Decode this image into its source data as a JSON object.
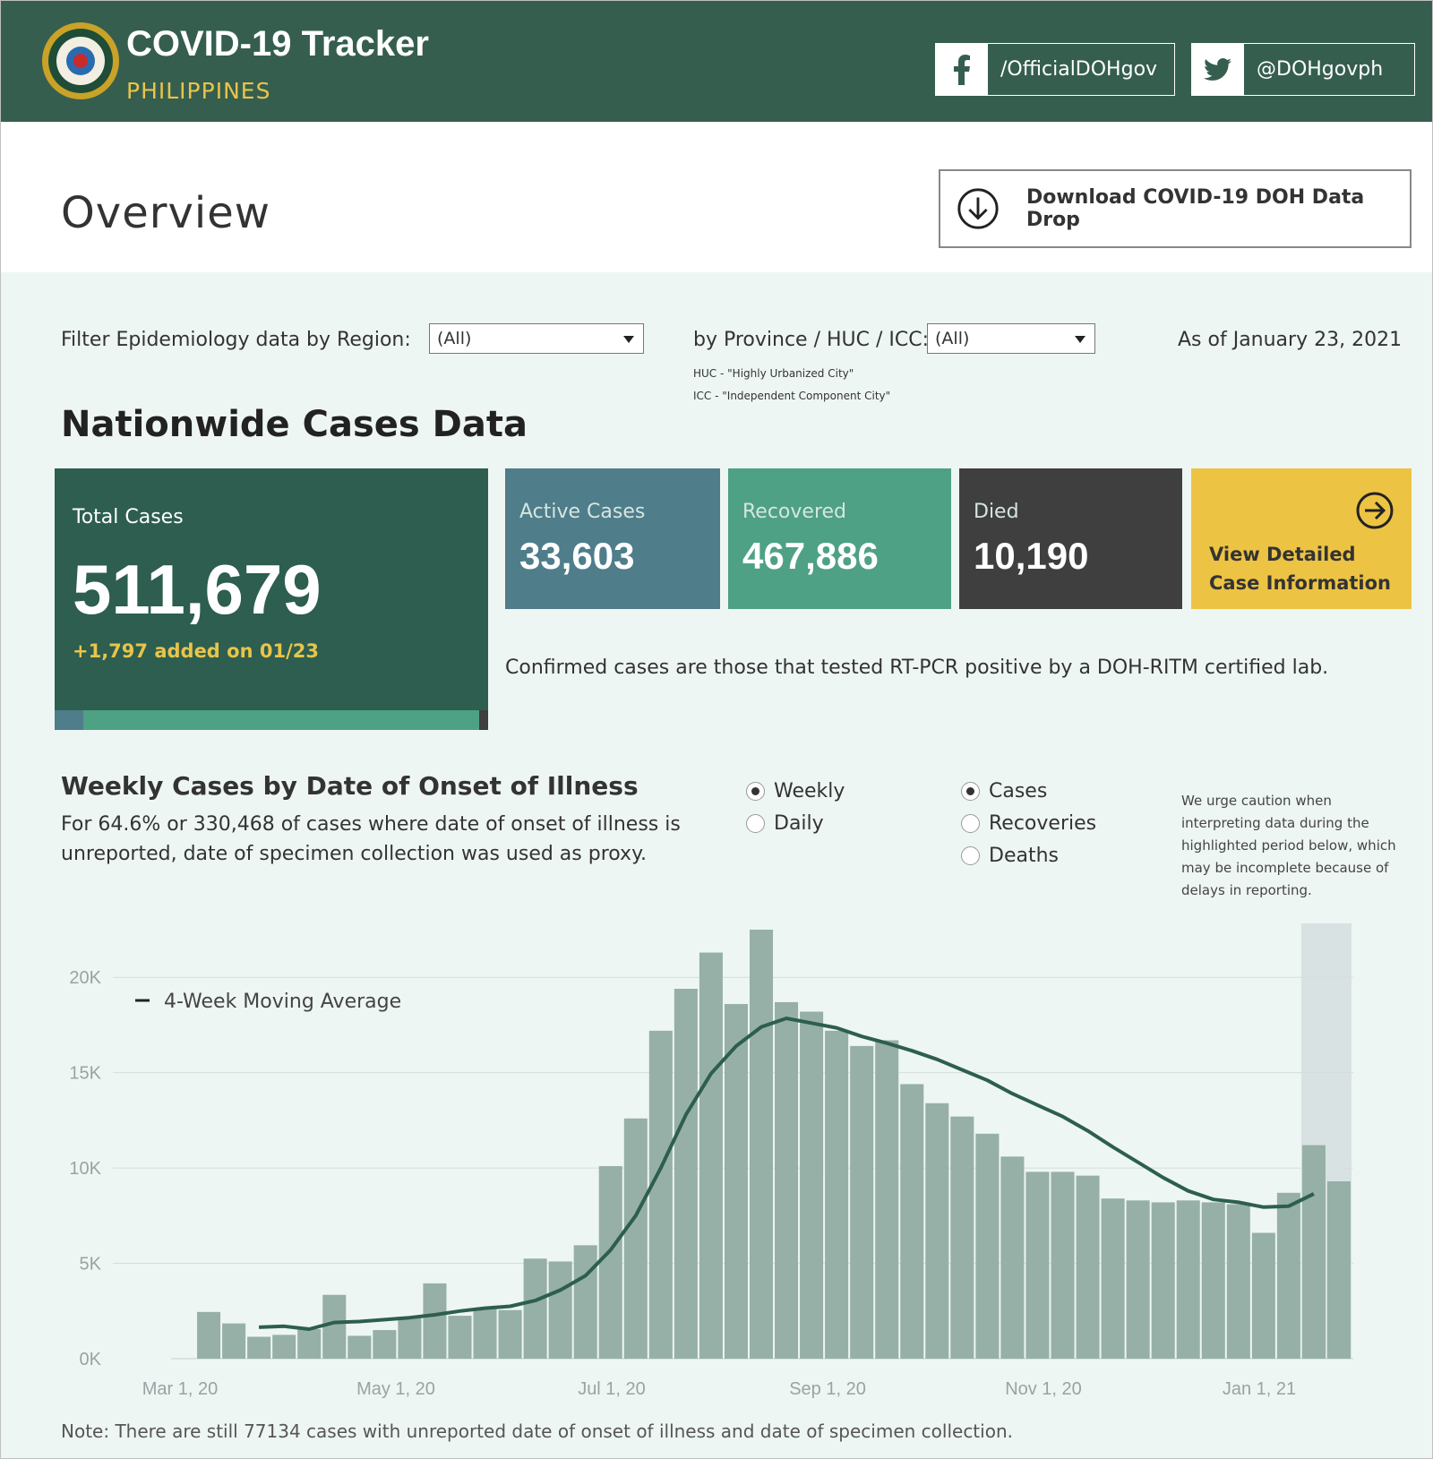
{
  "header": {
    "title": "COVID-19 Tracker",
    "subtitle": "PHILIPPINES",
    "facebook": "/OfficialDOHgov",
    "twitter": "@DOHgovph"
  },
  "overview": {
    "title": "Overview",
    "download_label": "Download COVID-19 DOH Data Drop"
  },
  "filters": {
    "region_label": "Filter Epidemiology data by Region:",
    "region_value": "(All)",
    "province_label": "by Province / HUC / ICC:",
    "province_value": "(All)",
    "huc_note": "HUC - \"Highly Urbanized City\"",
    "icc_note": "ICC - \"Independent Component City\"",
    "as_of": "As of January 23, 2021"
  },
  "cases": {
    "section_title": "Nationwide Cases Data",
    "total_label": "Total Cases",
    "total_value": "511,679",
    "added": "+1,797 added on 01/23",
    "active_label": "Active Cases",
    "active_value": "33,603",
    "recovered_label": "Recovered",
    "recovered_value": "467,886",
    "died_label": "Died",
    "died_value": "10,190",
    "cta_line1": "View Detailed",
    "cta_line2": "Case Information",
    "description": "Confirmed cases are those that tested RT-PCR positive by a DOH-RITM certified lab.",
    "colors": {
      "total": "#2d5e4f",
      "active": "#4f7d8a",
      "recovered": "#4ea184",
      "died": "#3f3f3f",
      "cta": "#edc343"
    }
  },
  "weekly": {
    "title": "Weekly Cases by Date of Onset of Illness",
    "subtitle": "For 64.6% or 330,468 of cases where date of onset of illness is unreported, date of specimen collection was used as proxy.",
    "period_options": [
      {
        "label": "Weekly",
        "selected": true
      },
      {
        "label": "Daily",
        "selected": false
      }
    ],
    "metric_options": [
      {
        "label": "Cases",
        "selected": true
      },
      {
        "label": "Recoveries",
        "selected": false
      },
      {
        "label": "Deaths",
        "selected": false
      }
    ],
    "caution": "We urge caution when interpreting data during the highlighted period below, which may be incomplete because of delays in reporting.",
    "footnote": "Note: There are still 77134 cases with unreported date of onset of illness and date of specimen collection."
  },
  "chart_data": {
    "type": "bar",
    "title": "Weekly Cases by Date of Onset of Illness",
    "legend": "4-Week Moving Average",
    "x_tick_labels": [
      "Mar 1, 20",
      "May 1, 20",
      "Jul 1, 20",
      "Sep 1, 20",
      "Nov 1, 20",
      "Jan 1, 21"
    ],
    "y_ticks": [
      0,
      5000,
      10000,
      15000,
      20000
    ],
    "y_tick_labels": [
      "0K",
      "5K",
      "10K",
      "15K",
      "20K"
    ],
    "ylim": [
      0,
      22500
    ],
    "values": [
      0,
      2450,
      1850,
      1150,
      1250,
      1550,
      3350,
      1200,
      1500,
      2200,
      3950,
      2250,
      2650,
      2550,
      5250,
      5100,
      5950,
      10100,
      12600,
      17200,
      19400,
      21300,
      18600,
      22500,
      18700,
      18200,
      17200,
      16400,
      16700,
      14400,
      13400,
      12700,
      11800,
      10600,
      9800,
      9800,
      9600,
      8400,
      8300,
      8200,
      8300,
      8200,
      8100,
      6600,
      8700,
      11200,
      9300
    ],
    "moving_average": [
      null,
      null,
      null,
      1650,
      1700,
      1550,
      1900,
      1950,
      2050,
      2150,
      2300,
      2500,
      2650,
      2750,
      3050,
      3600,
      4350,
      5700,
      7500,
      10000,
      12800,
      14950,
      16400,
      17400,
      17850,
      17600,
      17350,
      16900,
      16550,
      16150,
      15700,
      15150,
      14600,
      13900,
      13300,
      12700,
      11950,
      11100,
      10300,
      9500,
      8800,
      8350,
      8200,
      7950,
      8000,
      8650,
      null
    ],
    "highlight_last_n": 2,
    "colors": {
      "bar": "#96b0a7",
      "line": "#2d5e4f",
      "highlight": "#d9e2e2"
    }
  }
}
